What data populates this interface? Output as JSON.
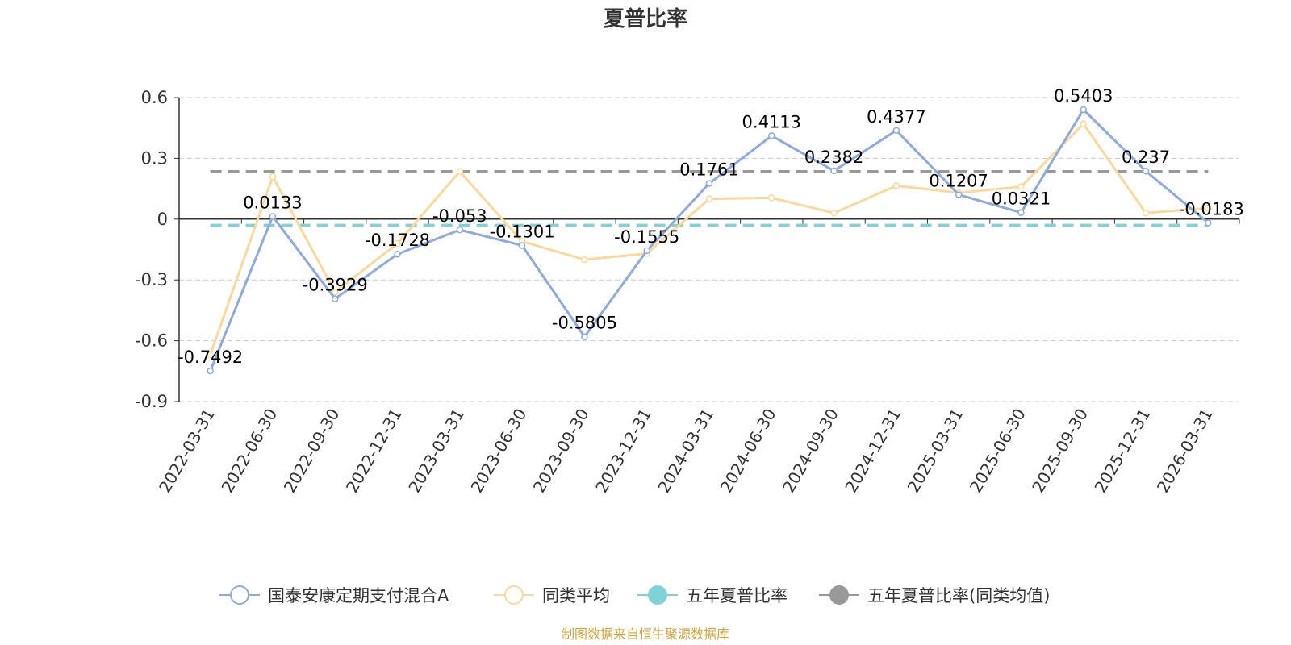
{
  "chart_data": {
    "type": "line",
    "title": "夏普比率",
    "xlabel": "",
    "ylabel": "",
    "ylim": [
      -0.9,
      0.6
    ],
    "yticks": [
      "0.6",
      "0.3",
      "0",
      "-0.3",
      "-0.6",
      "-0.9"
    ],
    "grid": true,
    "legend_position": "bottom",
    "categories": [
      "2022-03-31",
      "2022-06-30",
      "2022-09-30",
      "2022-12-31",
      "2023-03-31",
      "2023-06-30",
      "2023-09-30",
      "2023-12-31",
      "2024-03-31",
      "2024-06-30",
      "2024-09-30",
      "2024-12-31",
      "2025-03-31",
      "2025-06-30",
      "2025-09-30",
      "2025-12-31",
      "2026-03-31"
    ],
    "series": [
      {
        "name": "国泰安康定期支付混合A",
        "color": "#8faadc",
        "values": [
          -0.7492,
          0.0133,
          -0.3929,
          -0.1728,
          -0.053,
          -0.1301,
          -0.5805,
          -0.1555,
          0.1761,
          0.4113,
          0.2382,
          0.4377,
          0.1207,
          0.0321,
          0.5403,
          0.237,
          -0.0183
        ],
        "labels": [
          "-0.7492",
          "0.0133",
          "-0.3929",
          "-0.1728",
          "-0.053",
          "-0.1301",
          "-0.5805",
          "-0.1555",
          "0.1761",
          "0.4113",
          "0.2382",
          "0.4377",
          "0.1207",
          "0.0321",
          "0.5403",
          "0.237",
          "-0.0183"
        ]
      },
      {
        "name": "同类平均",
        "color": "#fcd99a",
        "values": [
          -0.67,
          0.21,
          -0.36,
          -0.12,
          0.235,
          -0.11,
          -0.2,
          -0.17,
          0.1,
          0.105,
          0.03,
          0.165,
          0.13,
          0.16,
          0.47,
          0.03,
          0.055
        ]
      },
      {
        "name": "五年夏普比率",
        "color": "#7fd3d8",
        "value": -0.03
      },
      {
        "name": "五年夏普比率(同类均值)",
        "color": "#999999",
        "value": 0.235
      }
    ]
  },
  "source": {
    "text": "制图数据来自恒生聚源数据库",
    "color": "#d4a23a"
  }
}
